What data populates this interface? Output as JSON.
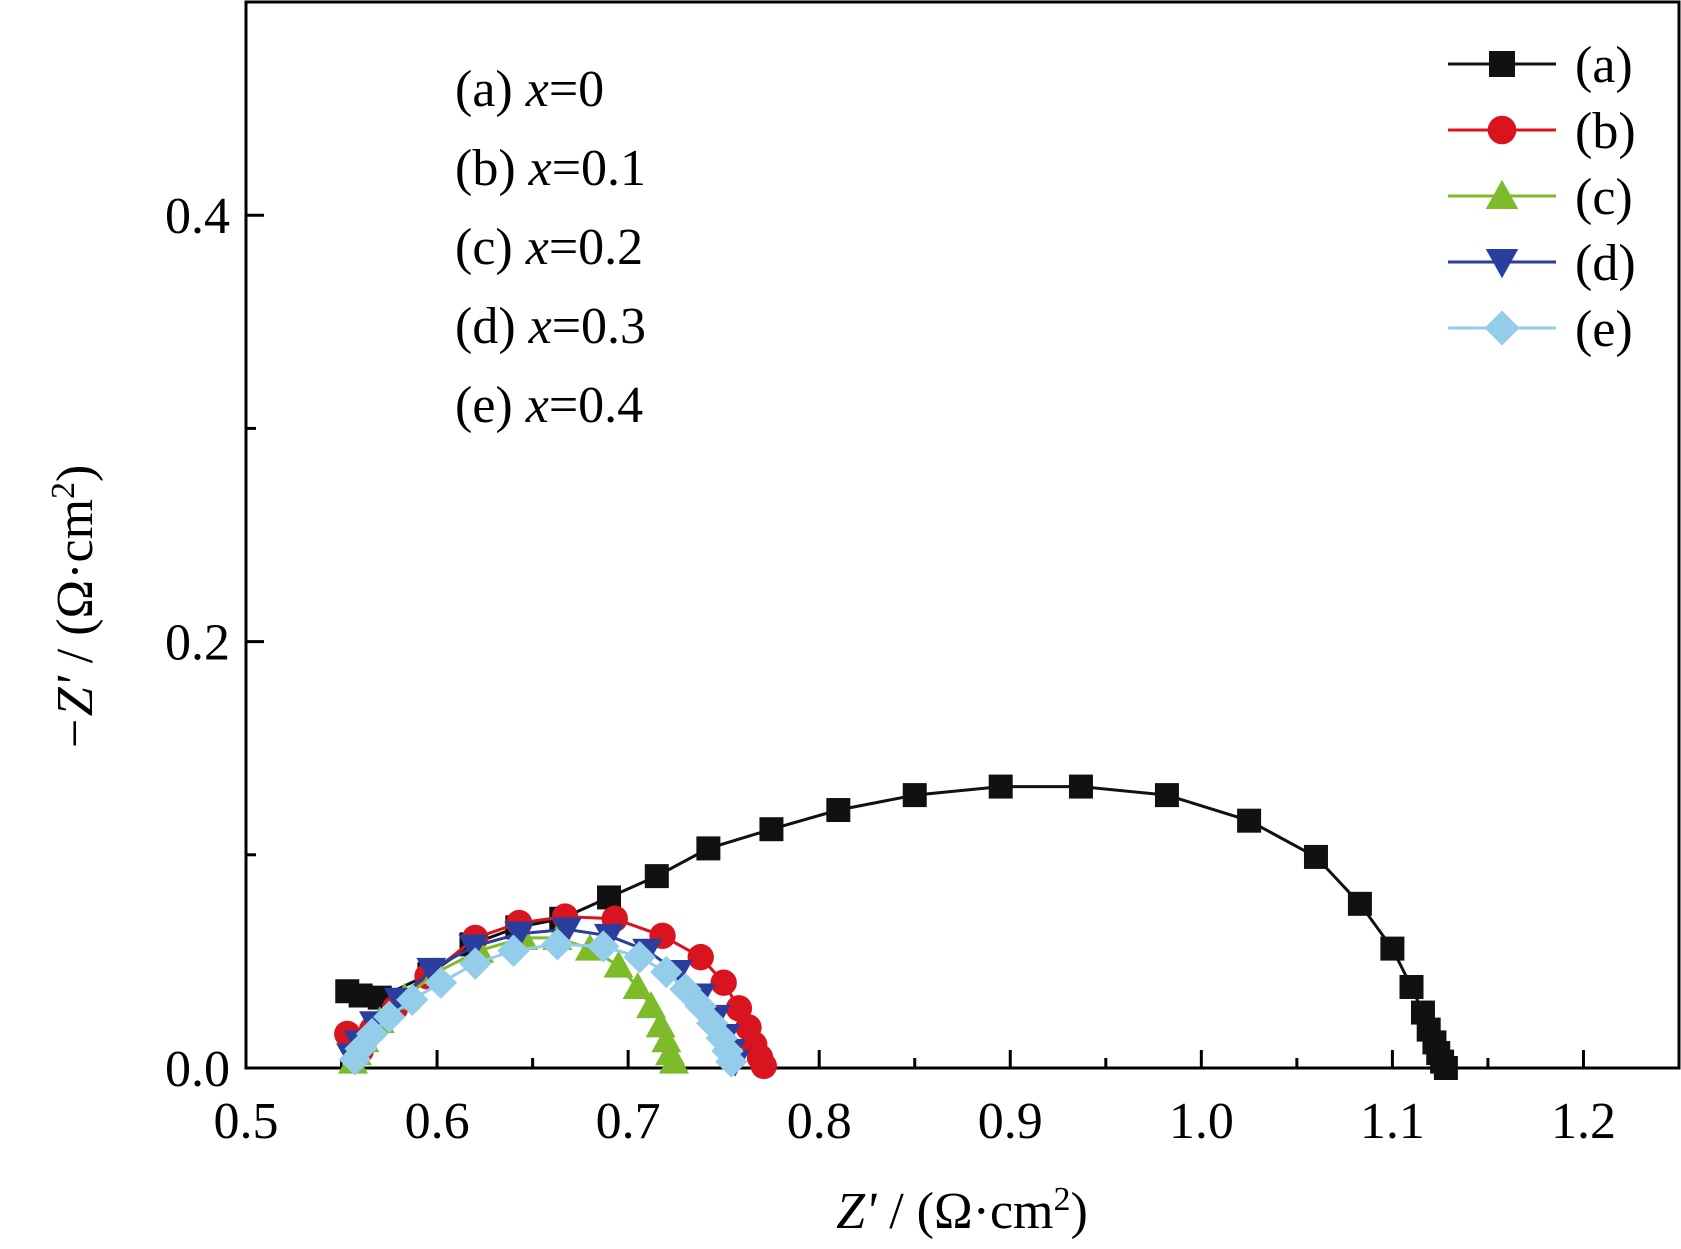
{
  "chart_data": {
    "type": "scatter",
    "title": "",
    "xlabel": {
      "var": "Z'",
      "unit": " / (Ω·cm",
      "sup": "2",
      "close": ")"
    },
    "ylabel": {
      "var": "−Z'",
      "unit": " / (Ω·cm",
      "sup": "2",
      "close": ")"
    },
    "xlim": [
      0.5,
      1.25
    ],
    "ylim": [
      0.0,
      0.5
    ],
    "x_ticks": [
      0.5,
      0.6,
      0.7,
      0.8,
      0.9,
      1.0,
      1.1,
      1.2
    ],
    "x_tick_labels": [
      "0.5",
      "0.6",
      "0.7",
      "0.8",
      "0.9",
      "1.0",
      "1.1",
      "1.2"
    ],
    "y_ticks": [
      0.0,
      0.2,
      0.4
    ],
    "y_tick_labels": [
      "0.0",
      "0.2",
      "0.4"
    ],
    "y_minor_ticks": [
      0.1,
      0.3
    ],
    "x_minor_ticks": [
      0.55,
      0.65,
      0.75,
      0.85,
      0.95,
      1.05,
      1.15
    ],
    "grid": false,
    "legend_position": "top-right",
    "annotations": [
      {
        "prefix": "(a) ",
        "var": "x",
        "value": "=0"
      },
      {
        "prefix": "(b) ",
        "var": "x",
        "value": "=0.1"
      },
      {
        "prefix": "(c) ",
        "var": "x",
        "value": "=0.2"
      },
      {
        "prefix": "(d) ",
        "var": "x",
        "value": "=0.3"
      },
      {
        "prefix": "(e) ",
        "var": "x",
        "value": "=0.4"
      }
    ],
    "series": [
      {
        "name": "(a)",
        "color": "#111111",
        "marker": "square",
        "points": [
          [
            0.553,
            0.036
          ],
          [
            0.56,
            0.034
          ],
          [
            0.57,
            0.033
          ],
          [
            0.596,
            0.044
          ],
          [
            0.618,
            0.058
          ],
          [
            0.642,
            0.066
          ],
          [
            0.665,
            0.07
          ],
          [
            0.69,
            0.08
          ],
          [
            0.715,
            0.09
          ],
          [
            0.742,
            0.103
          ],
          [
            0.775,
            0.112
          ],
          [
            0.81,
            0.121
          ],
          [
            0.85,
            0.128
          ],
          [
            0.895,
            0.132
          ],
          [
            0.937,
            0.132
          ],
          [
            0.982,
            0.128
          ],
          [
            1.025,
            0.116
          ],
          [
            1.06,
            0.099
          ],
          [
            1.083,
            0.077
          ],
          [
            1.1,
            0.056
          ],
          [
            1.11,
            0.038
          ],
          [
            1.116,
            0.026
          ],
          [
            1.119,
            0.018
          ],
          [
            1.122,
            0.012
          ],
          [
            1.124,
            0.007
          ],
          [
            1.126,
            0.003
          ],
          [
            1.128,
            0.0
          ]
        ]
      },
      {
        "name": "(b)",
        "color": "#d9141e",
        "marker": "circle",
        "points": [
          [
            0.553,
            0.016
          ],
          [
            0.556,
            0.012
          ],
          [
            0.56,
            0.008
          ],
          [
            0.566,
            0.018
          ],
          [
            0.578,
            0.028
          ],
          [
            0.595,
            0.043
          ],
          [
            0.62,
            0.061
          ],
          [
            0.643,
            0.068
          ],
          [
            0.667,
            0.071
          ],
          [
            0.693,
            0.07
          ],
          [
            0.718,
            0.062
          ],
          [
            0.738,
            0.052
          ],
          [
            0.75,
            0.04
          ],
          [
            0.758,
            0.028
          ],
          [
            0.763,
            0.019
          ],
          [
            0.766,
            0.011
          ],
          [
            0.769,
            0.005
          ],
          [
            0.771,
            0.001
          ]
        ]
      },
      {
        "name": "(c)",
        "color": "#7dbb2a",
        "marker": "triangle-up",
        "points": [
          [
            0.556,
            0.003
          ],
          [
            0.558,
            0.007
          ],
          [
            0.562,
            0.013
          ],
          [
            0.57,
            0.022
          ],
          [
            0.583,
            0.033
          ],
          [
            0.6,
            0.045
          ],
          [
            0.622,
            0.055
          ],
          [
            0.645,
            0.061
          ],
          [
            0.663,
            0.061
          ],
          [
            0.68,
            0.056
          ],
          [
            0.695,
            0.048
          ],
          [
            0.705,
            0.038
          ],
          [
            0.712,
            0.029
          ],
          [
            0.717,
            0.02
          ],
          [
            0.72,
            0.013
          ],
          [
            0.722,
            0.007
          ],
          [
            0.724,
            0.003
          ]
        ]
      },
      {
        "name": "(d)",
        "color": "#2a3e9e",
        "marker": "triangle-down",
        "points": [
          [
            0.555,
            0.006
          ],
          [
            0.559,
            0.012
          ],
          [
            0.567,
            0.021
          ],
          [
            0.58,
            0.032
          ],
          [
            0.597,
            0.046
          ],
          [
            0.619,
            0.057
          ],
          [
            0.643,
            0.063
          ],
          [
            0.668,
            0.065
          ],
          [
            0.69,
            0.062
          ],
          [
            0.71,
            0.055
          ],
          [
            0.726,
            0.045
          ],
          [
            0.738,
            0.034
          ],
          [
            0.746,
            0.024
          ],
          [
            0.751,
            0.015
          ],
          [
            0.754,
            0.008
          ],
          [
            0.756,
            0.003
          ]
        ]
      },
      {
        "name": "(e)",
        "color": "#94cdea",
        "marker": "diamond",
        "points": [
          [
            0.557,
            0.004
          ],
          [
            0.56,
            0.009
          ],
          [
            0.566,
            0.016
          ],
          [
            0.575,
            0.024
          ],
          [
            0.587,
            0.032
          ],
          [
            0.602,
            0.04
          ],
          [
            0.62,
            0.049
          ],
          [
            0.64,
            0.055
          ],
          [
            0.663,
            0.058
          ],
          [
            0.687,
            0.057
          ],
          [
            0.706,
            0.052
          ],
          [
            0.72,
            0.045
          ],
          [
            0.73,
            0.037
          ],
          [
            0.738,
            0.029
          ],
          [
            0.744,
            0.021
          ],
          [
            0.749,
            0.014
          ],
          [
            0.752,
            0.008
          ],
          [
            0.754,
            0.003
          ]
        ]
      }
    ]
  }
}
